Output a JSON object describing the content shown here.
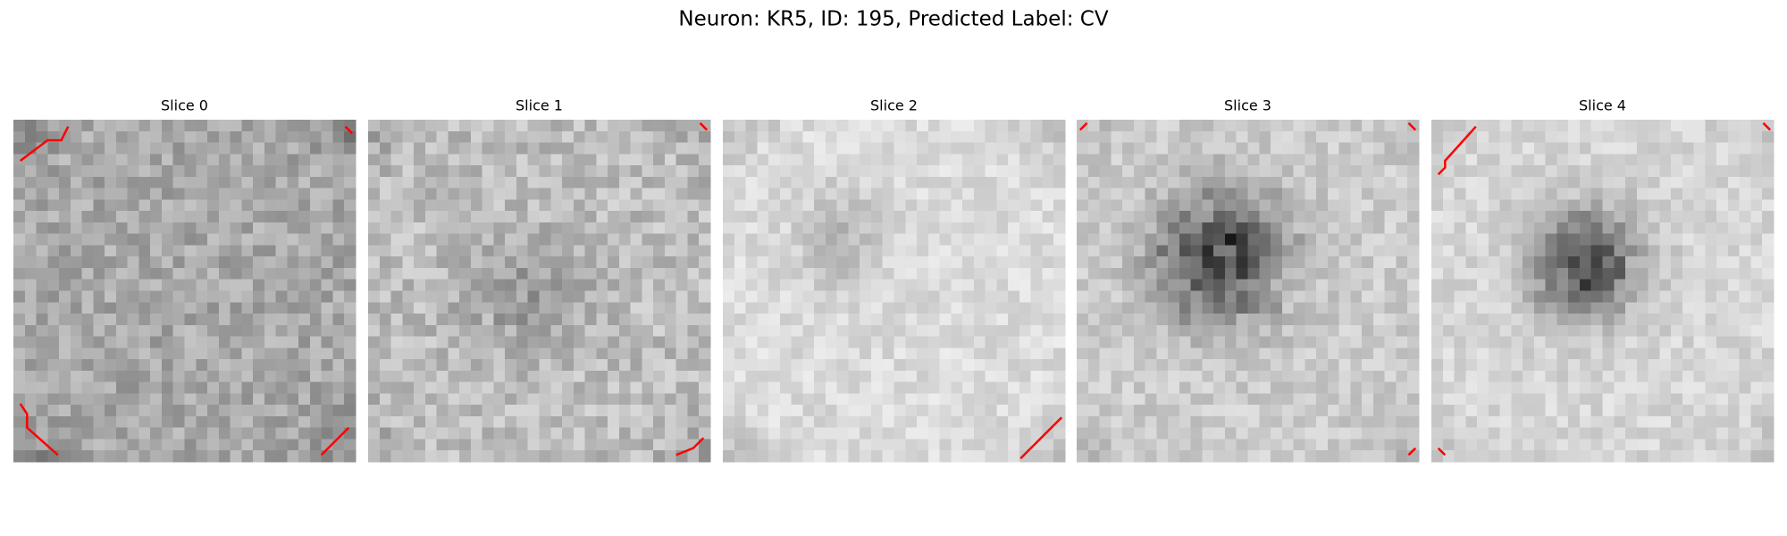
{
  "title": "Neuron: KR5, ID: 195, Predicted Label: CV",
  "panels": [
    {
      "title": "Slice 0"
    },
    {
      "title": "Slice 1"
    },
    {
      "title": "Slice 2"
    },
    {
      "title": "Slice 3"
    },
    {
      "title": "Slice 4"
    }
  ]
}
